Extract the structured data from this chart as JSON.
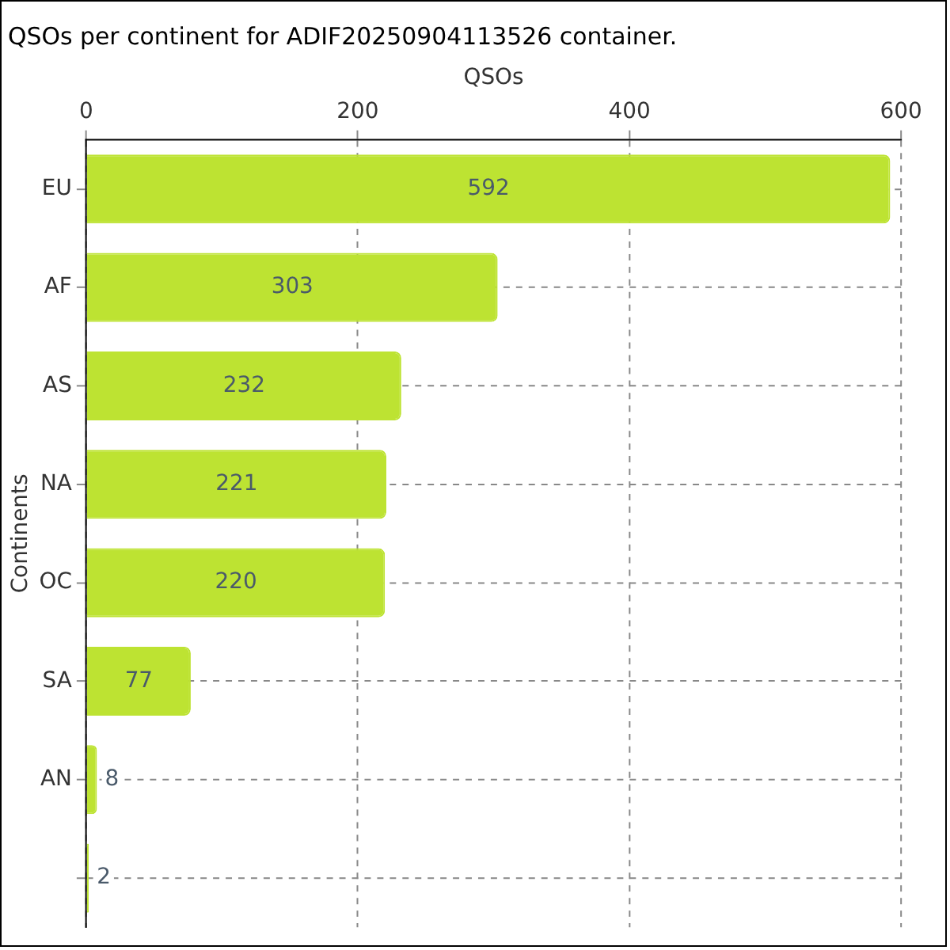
{
  "chart_data": {
    "type": "bar",
    "orientation": "horizontal",
    "title": "QSOs per continent for ADIF20250904113526 container.",
    "xlabel": "QSOs",
    "ylabel": "Continents",
    "categories": [
      "EU",
      "AF",
      "AS",
      "NA",
      "OC",
      "SA",
      "AN",
      null
    ],
    "values": [
      592,
      303,
      232,
      221,
      220,
      77,
      8,
      2
    ],
    "color": "#bde332",
    "xlim": [
      0,
      600
    ],
    "xticks": [
      0,
      200,
      400,
      600
    ],
    "grid": true,
    "data_labels": true,
    "legend": false
  }
}
